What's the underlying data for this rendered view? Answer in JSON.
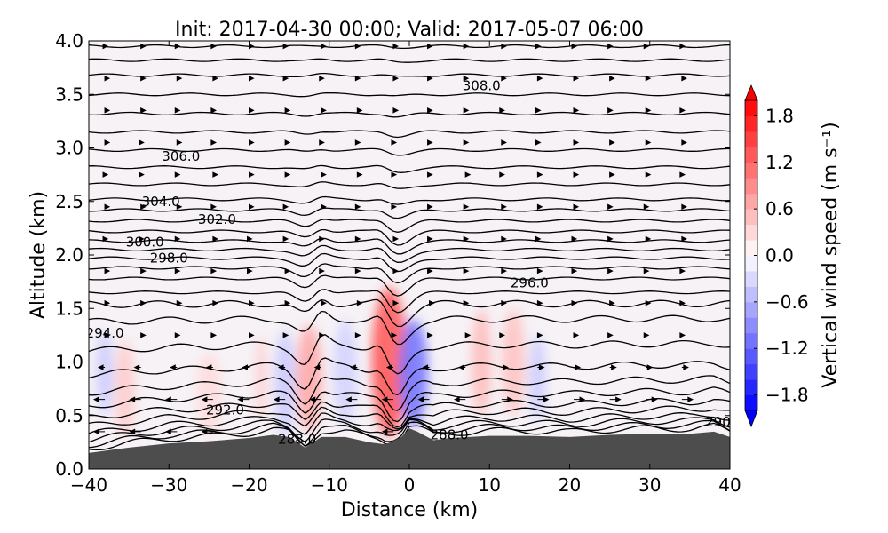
{
  "chart_data": {
    "type": "contour",
    "title": "Init: 2017-04-30 00:00; Valid: 2017-05-07 06:00",
    "xlabel": "Distance (km)",
    "ylabel": "Altitude (km)",
    "xlim": [
      -40,
      40
    ],
    "ylim": [
      0,
      4
    ],
    "xticks": [
      "−40",
      "−30",
      "−20",
      "−10",
      "0",
      "10",
      "20",
      "30",
      "40"
    ],
    "xtick_values": [
      -40,
      -30,
      -20,
      -10,
      0,
      10,
      20,
      30,
      40
    ],
    "yticks": [
      "0.0",
      "0.5",
      "1.0",
      "1.5",
      "2.0",
      "2.5",
      "3.0",
      "3.5",
      "4.0"
    ],
    "ytick_values": [
      0,
      0.5,
      1,
      1.5,
      2,
      2.5,
      3,
      3.5,
      4
    ],
    "colorbar": {
      "label": "Vertical wind speed (m s⁻¹)",
      "range": [
        -2,
        2
      ],
      "step": 0.2,
      "ticks": [
        "−1.8",
        "−1.2",
        "−0.6",
        "0.0",
        "0.6",
        "1.2",
        "1.8"
      ],
      "tick_values": [
        -1.8,
        -1.2,
        -0.6,
        0,
        0.6,
        1.2,
        1.8
      ],
      "extend": "both",
      "cmap": "bwr"
    },
    "terrain": {
      "color": "#4d4d4d",
      "x": [
        -40,
        -37,
        -35,
        -30,
        -25,
        -20,
        -17,
        -15,
        -13,
        -11,
        -8,
        -5,
        -3,
        -1,
        0,
        1,
        3,
        5,
        10,
        15,
        20,
        25,
        30,
        35,
        38,
        40
      ],
      "alt": [
        0.15,
        0.18,
        0.2,
        0.24,
        0.26,
        0.29,
        0.32,
        0.3,
        0.2,
        0.3,
        0.3,
        0.25,
        0.23,
        0.3,
        0.38,
        0.35,
        0.27,
        0.29,
        0.31,
        0.31,
        0.3,
        0.32,
        0.33,
        0.33,
        0.35,
        0.3
      ]
    },
    "theta_contours": {
      "base_alt": [
        0.04,
        0.08,
        0.13,
        0.19,
        0.27,
        0.36,
        0.48,
        0.62,
        0.8,
        1.05,
        1.35,
        1.53,
        1.65,
        1.78,
        1.88,
        1.97,
        2.05,
        2.13,
        2.22,
        2.32,
        2.42,
        2.52,
        2.66,
        2.82,
        2.98,
        3.15,
        3.32,
        3.5,
        3.68,
        3.82,
        3.95
      ],
      "dip_amp": [
        0.05,
        0.08,
        0.1,
        0.12,
        0.15,
        0.18,
        0.22,
        0.25,
        0.28,
        0.3,
        0.25,
        0.2,
        0.18,
        0.16,
        0.15,
        0.14,
        0.13,
        0.12,
        0.12,
        0.1,
        0.08,
        0.06,
        0.05,
        0.05,
        0.04,
        0.04,
        0.03,
        0.02,
        0.02,
        0.02,
        0.01
      ]
    },
    "contour_labels": [
      {
        "text": "308.0",
        "x": 9,
        "alt": 3.58
      },
      {
        "text": "306.0",
        "x": -28.5,
        "alt": 2.92
      },
      {
        "text": "304.0",
        "x": -31,
        "alt": 2.5
      },
      {
        "text": "302.0",
        "x": -24,
        "alt": 2.33
      },
      {
        "text": "300.0",
        "x": -33,
        "alt": 2.12
      },
      {
        "text": "298.0",
        "x": -30,
        "alt": 1.97
      },
      {
        "text": "296.0",
        "x": 15,
        "alt": 1.74
      },
      {
        "text": "294.0",
        "x": -38,
        "alt": 1.27
      },
      {
        "text": "292.0",
        "x": -23,
        "alt": 0.55
      },
      {
        "text": "288.0",
        "x": -14,
        "alt": 0.28
      },
      {
        "text": "288.0",
        "x": 5,
        "alt": 0.32
      },
      {
        "text": "290",
        "x": 38.5,
        "alt": 0.44
      }
    ],
    "w_features": [
      {
        "x": -2.5,
        "alt": 1.0,
        "sx": 2.2,
        "sy": 0.7,
        "w": 1.0
      },
      {
        "x": -2.2,
        "alt": 1.25,
        "sx": 1.0,
        "sy": 0.35,
        "w": 0.8
      },
      {
        "x": 0.5,
        "alt": 0.9,
        "sx": 1.8,
        "sy": 0.5,
        "w": -0.8
      },
      {
        "x": -12.5,
        "alt": 0.85,
        "sx": 1.6,
        "sy": 0.5,
        "w": 0.5
      },
      {
        "x": -15.5,
        "alt": 0.8,
        "sx": 1.3,
        "sy": 0.5,
        "w": -0.3
      },
      {
        "x": -35.5,
        "alt": 0.75,
        "sx": 1.2,
        "sy": 0.45,
        "w": 0.3
      },
      {
        "x": -18.5,
        "alt": 0.85,
        "sx": 0.6,
        "sy": 0.4,
        "w": 0.3
      },
      {
        "x": 9,
        "alt": 1.0,
        "sx": 1.2,
        "sy": 0.5,
        "w": 0.4
      },
      {
        "x": 13,
        "alt": 1.0,
        "sx": 1.4,
        "sy": 0.5,
        "w": 0.35
      },
      {
        "x": 16,
        "alt": 0.85,
        "sx": 1.0,
        "sy": 0.4,
        "w": -0.3
      },
      {
        "x": -8,
        "alt": 0.9,
        "sx": 1.5,
        "sy": 0.5,
        "w": -0.25
      },
      {
        "x": -25,
        "alt": 0.7,
        "sx": 1.5,
        "sy": 0.4,
        "w": 0.2
      },
      {
        "x": -38,
        "alt": 0.9,
        "sx": 1.0,
        "sy": 0.4,
        "w": -0.3
      }
    ]
  }
}
